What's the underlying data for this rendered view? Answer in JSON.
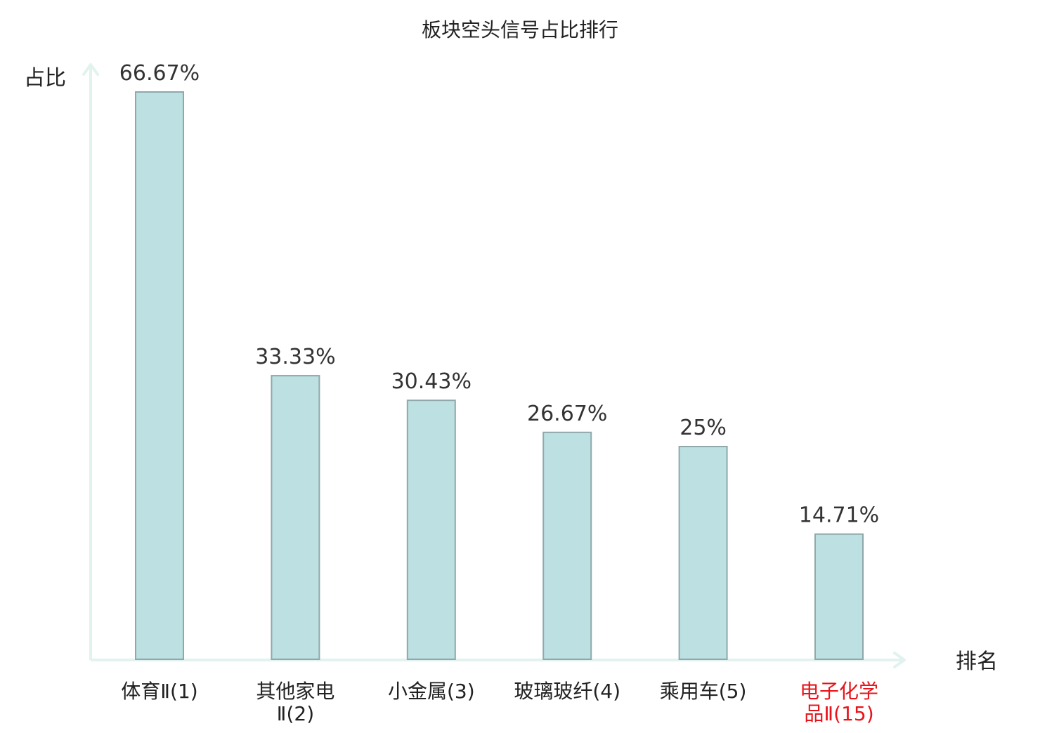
{
  "chart_data": {
    "type": "bar",
    "title": "板块空头信号占比排行",
    "ylabel": "占比",
    "xlabel": "排名",
    "ylim": [
      0,
      70
    ],
    "grid": false,
    "legend": "none",
    "categories": [
      {
        "line1": "体育Ⅱ(1)",
        "line2": "",
        "highlight": false
      },
      {
        "line1": "其他家电",
        "line2": "Ⅱ(2)",
        "highlight": false
      },
      {
        "line1": "小金属(3)",
        "line2": "",
        "highlight": false
      },
      {
        "line1": "玻璃玻纤(4)",
        "line2": "",
        "highlight": false
      },
      {
        "line1": "乘用车(5)",
        "line2": "",
        "highlight": false
      },
      {
        "line1": "电子化学",
        "line2": "品Ⅱ(15)",
        "highlight": true
      }
    ],
    "values": [
      66.67,
      33.33,
      30.43,
      26.67,
      25,
      14.71
    ],
    "value_labels": [
      "66.67%",
      "33.33%",
      "30.43%",
      "26.67%",
      "25%",
      "14.71%"
    ],
    "colors": {
      "bar_fill": "#bde0e3",
      "bar_stroke": "#8fa8aa",
      "axis": "#e2f2ef",
      "text": "#222222",
      "value_text": "#333333",
      "highlight_text": "#e8141b"
    }
  }
}
